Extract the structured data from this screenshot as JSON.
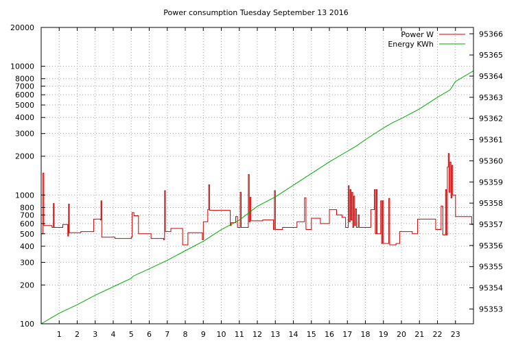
{
  "chart_data": {
    "type": "line",
    "title": "Power consumption Tuesday September 13 2016",
    "xlabel": "",
    "ylabel": "",
    "y2label": "",
    "grid": true,
    "legend_position": "top-right",
    "xlim": [
      0,
      24
    ],
    "x_ticks": [
      1,
      2,
      3,
      4,
      5,
      6,
      7,
      8,
      9,
      10,
      11,
      12,
      13,
      14,
      15,
      16,
      17,
      18,
      19,
      20,
      21,
      22,
      23
    ],
    "y_scale": "log",
    "ylim": [
      100,
      20000
    ],
    "y_ticks": [
      100,
      200,
      300,
      400,
      500,
      600,
      700,
      800,
      1000,
      2000,
      3000,
      4000,
      5000,
      6000,
      7000,
      8000,
      10000,
      20000
    ],
    "y2lim": [
      95352.3,
      95366.3
    ],
    "y2_ticks": [
      95353,
      95354,
      95355,
      95356,
      95357,
      95358,
      95359,
      95360,
      95361,
      95362,
      95363,
      95364,
      95365,
      95366
    ],
    "series": [
      {
        "name": "Power W",
        "color": "#cc0000",
        "axis": "y",
        "shape": "step",
        "points": [
          [
            0.0,
            500
          ],
          [
            0.1,
            1480
          ],
          [
            0.15,
            580
          ],
          [
            0.6,
            560
          ],
          [
            0.68,
            860
          ],
          [
            0.72,
            560
          ],
          [
            1.2,
            590
          ],
          [
            1.48,
            480
          ],
          [
            1.52,
            850
          ],
          [
            1.56,
            510
          ],
          [
            2.2,
            520
          ],
          [
            2.9,
            520
          ],
          [
            2.92,
            650
          ],
          [
            3.3,
            640
          ],
          [
            3.32,
            900
          ],
          [
            3.36,
            470
          ],
          [
            4.1,
            460
          ],
          [
            5.0,
            470
          ],
          [
            5.05,
            730
          ],
          [
            5.15,
            690
          ],
          [
            5.4,
            500
          ],
          [
            6.1,
            460
          ],
          [
            6.8,
            450
          ],
          [
            6.85,
            1080
          ],
          [
            6.9,
            520
          ],
          [
            7.2,
            550
          ],
          [
            7.85,
            410
          ],
          [
            8.15,
            510
          ],
          [
            8.8,
            510
          ],
          [
            8.95,
            450
          ],
          [
            9.0,
            620
          ],
          [
            9.25,
            770
          ],
          [
            9.3,
            1200
          ],
          [
            9.35,
            760
          ],
          [
            9.9,
            760
          ],
          [
            10.5,
            580
          ],
          [
            10.55,
            610
          ],
          [
            10.8,
            680
          ],
          [
            10.9,
            560
          ],
          [
            11.05,
            1050
          ],
          [
            11.1,
            560
          ],
          [
            11.5,
            1440
          ],
          [
            11.55,
            620
          ],
          [
            11.6,
            960
          ],
          [
            11.65,
            630
          ],
          [
            12.3,
            640
          ],
          [
            12.9,
            540
          ],
          [
            12.95,
            1080
          ],
          [
            13.0,
            540
          ],
          [
            13.4,
            560
          ],
          [
            14.2,
            620
          ],
          [
            14.6,
            620
          ],
          [
            14.62,
            950
          ],
          [
            14.7,
            540
          ],
          [
            15.0,
            660
          ],
          [
            15.5,
            600
          ],
          [
            16.0,
            770
          ],
          [
            16.4,
            700
          ],
          [
            16.7,
            670
          ],
          [
            16.9,
            560
          ],
          [
            17.05,
            1180
          ],
          [
            17.1,
            620
          ],
          [
            17.15,
            1100
          ],
          [
            17.2,
            640
          ],
          [
            17.25,
            1050
          ],
          [
            17.3,
            560
          ],
          [
            17.35,
            980
          ],
          [
            17.4,
            580
          ],
          [
            17.45,
            780
          ],
          [
            17.5,
            560
          ],
          [
            17.6,
            700
          ],
          [
            17.65,
            560
          ],
          [
            18.0,
            560
          ],
          [
            18.3,
            770
          ],
          [
            18.5,
            1100
          ],
          [
            18.55,
            500
          ],
          [
            18.6,
            1100
          ],
          [
            18.65,
            500
          ],
          [
            18.85,
            900
          ],
          [
            18.9,
            420
          ],
          [
            18.95,
            900
          ],
          [
            19.0,
            420
          ],
          [
            19.3,
            940
          ],
          [
            19.35,
            410
          ],
          [
            19.7,
            420
          ],
          [
            19.9,
            520
          ],
          [
            20.6,
            500
          ],
          [
            20.9,
            650
          ],
          [
            21.9,
            540
          ],
          [
            22.2,
            820
          ],
          [
            22.3,
            490
          ],
          [
            22.45,
            1100
          ],
          [
            22.5,
            490
          ],
          [
            22.55,
            1650
          ],
          [
            22.6,
            2100
          ],
          [
            22.65,
            1050
          ],
          [
            22.7,
            1800
          ],
          [
            22.75,
            950
          ],
          [
            22.8,
            1700
          ],
          [
            22.85,
            1000
          ],
          [
            23.0,
            680
          ],
          [
            23.9,
            590
          ],
          [
            24.0,
            590
          ]
        ]
      },
      {
        "name": "Energy KWh",
        "color": "#00aa00",
        "axis": "y2",
        "shape": "line",
        "points": [
          [
            0.0,
            95352.3
          ],
          [
            0.5,
            95352.55
          ],
          [
            1.0,
            95352.8
          ],
          [
            2.0,
            95353.2
          ],
          [
            3.0,
            95353.65
          ],
          [
            4.0,
            95354.05
          ],
          [
            5.0,
            95354.45
          ],
          [
            5.1,
            95354.55
          ],
          [
            6.0,
            95354.9
          ],
          [
            7.0,
            95355.3
          ],
          [
            8.0,
            95355.75
          ],
          [
            9.0,
            95356.2
          ],
          [
            10.0,
            95356.75
          ],
          [
            11.0,
            95357.2
          ],
          [
            12.0,
            95357.85
          ],
          [
            13.0,
            95358.3
          ],
          [
            14.0,
            95358.85
          ],
          [
            15.0,
            95359.4
          ],
          [
            16.0,
            95359.95
          ],
          [
            17.0,
            95360.45
          ],
          [
            17.5,
            95360.7
          ],
          [
            18.0,
            95361.0
          ],
          [
            19.0,
            95361.55
          ],
          [
            19.5,
            95361.8
          ],
          [
            20.0,
            95362.0
          ],
          [
            21.0,
            95362.45
          ],
          [
            22.0,
            95363.0
          ],
          [
            22.7,
            95363.35
          ],
          [
            23.0,
            95363.75
          ],
          [
            24.0,
            95364.25
          ]
        ]
      }
    ]
  }
}
